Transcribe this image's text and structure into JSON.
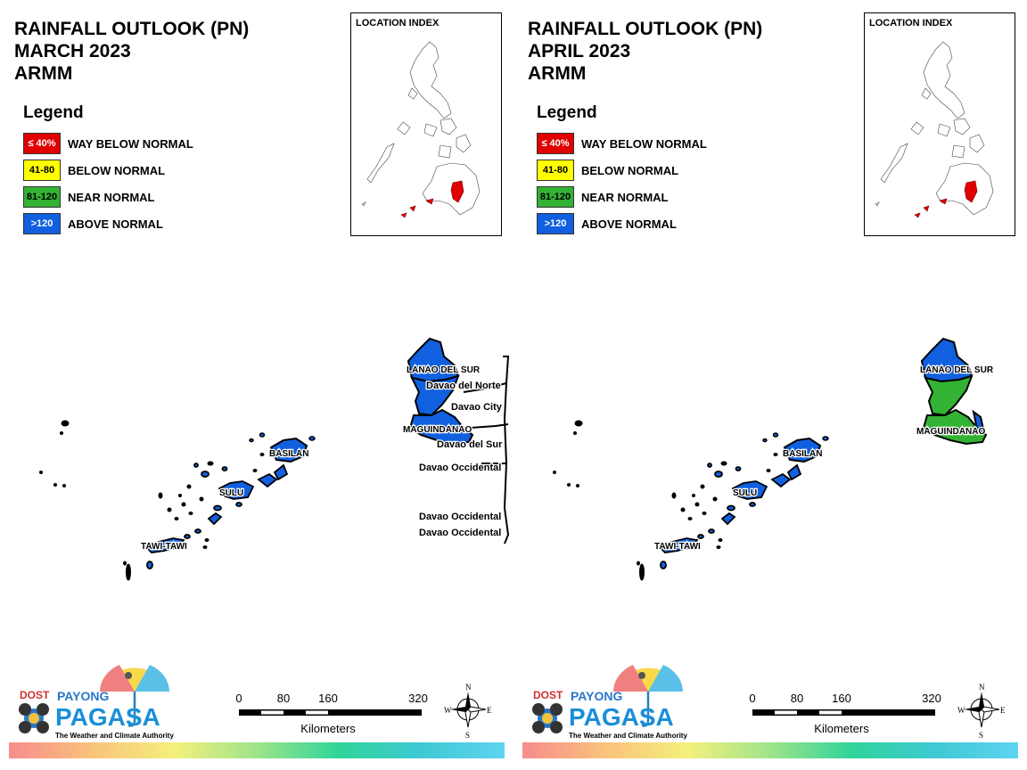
{
  "panels": [
    {
      "title_line1": "RAINFALL OUTLOOK (PN)",
      "title_line2": "MARCH 2023",
      "title_line3": "ARMM",
      "map_labels": {
        "lanao": "LANAO DEL SUR",
        "davao_norte": "Davao del Norte",
        "davao_city": "Davao City",
        "maguindanao": "MAGUINDANAO",
        "davao_sur": "Davao del Sur",
        "davao_occ1": "Davao Occidental",
        "davao_occ2": "Davao Occidental",
        "davao_occ3": "Davao Occidental",
        "basilan": "BASILAN",
        "sulu": "SULU",
        "tawi": "TAWI-TAWI"
      },
      "province_categories": {
        "lanao_north": "above_normal",
        "lanao_south": "above_normal",
        "maguindanao": "above_normal",
        "basilan": "above_normal",
        "sulu": "above_normal",
        "tawi": "above_normal"
      }
    },
    {
      "title_line1": "RAINFALL OUTLOOK (PN)",
      "title_line2": "APRIL 2023",
      "title_line3": "ARMM",
      "map_labels": {
        "lanao": "LANAO DEL SUR",
        "maguindanao": "MAGUINDANAO",
        "basilan": "BASILAN",
        "sulu": "SULU",
        "tawi": "TAWI-TAWI"
      },
      "province_categories": {
        "lanao_north": "above_normal",
        "lanao_south": "near_normal",
        "maguindanao": "near_normal",
        "basilan": "above_normal",
        "sulu": "above_normal",
        "tawi": "above_normal"
      }
    }
  ],
  "legend": {
    "title": "Legend",
    "items": [
      {
        "swatch_text": "≤ 40%",
        "label": "WAY BELOW NORMAL",
        "color": "#e00000",
        "text_color": "#ffffff"
      },
      {
        "swatch_text": "41-80",
        "label": "BELOW NORMAL",
        "color": "#ffff00",
        "text_color": "#000000"
      },
      {
        "swatch_text": "81-120",
        "label": "NEAR NORMAL",
        "color": "#33b233",
        "text_color": "#000000"
      },
      {
        "swatch_text": ">120",
        "label": "ABOVE NORMAL",
        "color": "#1060e0",
        "text_color": "#ffffff"
      }
    ]
  },
  "category_colors": {
    "way_below_normal": "#e00000",
    "below_normal": "#ffff00",
    "near_normal": "#33b233",
    "above_normal": "#1060e0"
  },
  "location_index": {
    "title": "LOCATION INDEX",
    "highlight_color": "#e00000"
  },
  "logo": {
    "dost": "DOST",
    "payong": "PAYONG",
    "pagasa": "PAGASA",
    "tagline": "The Weather and Climate Authority"
  },
  "scale_bar": {
    "ticks": [
      "0",
      "80",
      "160",
      "320"
    ],
    "units": "Kilometers"
  },
  "compass": {
    "n": "N",
    "s": "S",
    "e": "E",
    "w": "W"
  }
}
